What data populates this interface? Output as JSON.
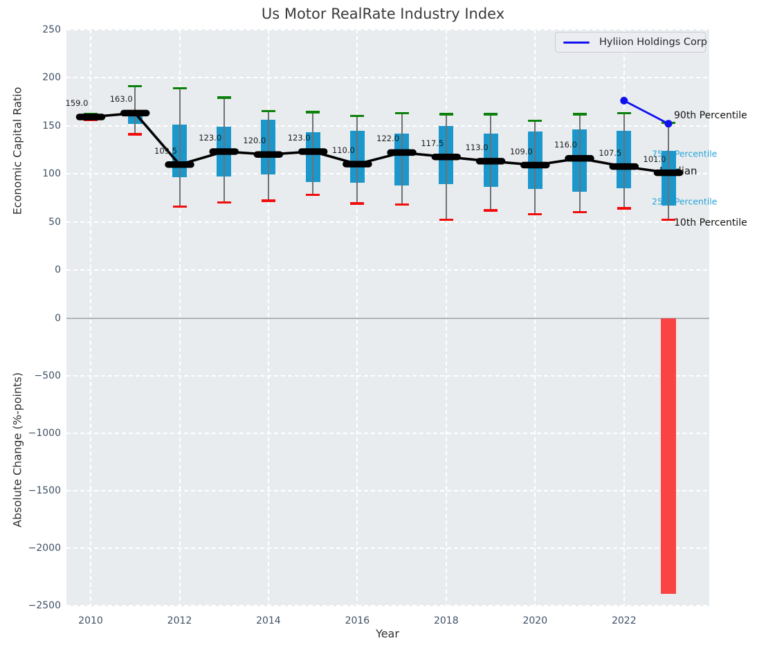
{
  "title": "Us Motor RealRate Industry Index",
  "legend": {
    "label": "Hyliion Holdings Corp",
    "line_color": "#1111ee"
  },
  "axes": {
    "top": {
      "ylabel": "Economic Capital Ratio",
      "yticks": [
        {
          "label": "250",
          "v": 250
        },
        {
          "label": "200",
          "v": 200
        },
        {
          "label": "150",
          "v": 150
        },
        {
          "label": "100",
          "v": 100
        },
        {
          "label": "50",
          "v": 50
        },
        {
          "label": "0",
          "v": 0
        }
      ]
    },
    "bottom": {
      "ylabel": "Absolute Change (%-points)",
      "yticks": [
        {
          "label": "0",
          "v": 0
        },
        {
          "label": "−500",
          "v": -500
        },
        {
          "label": "−1000",
          "v": -1000
        },
        {
          "label": "−1500",
          "v": -1500
        },
        {
          "label": "−2000",
          "v": -2000
        },
        {
          "label": "−2500",
          "v": -2500
        }
      ]
    },
    "x": {
      "label": "Year",
      "ticks": [
        {
          "label": "2010",
          "v": 2010
        },
        {
          "label": "2012",
          "v": 2012
        },
        {
          "label": "2014",
          "v": 2014
        },
        {
          "label": "2016",
          "v": 2016
        },
        {
          "label": "2018",
          "v": 2018
        },
        {
          "label": "2020",
          "v": 2020
        },
        {
          "label": "2022",
          "v": 2022
        }
      ]
    }
  },
  "chart_data": {
    "type": "boxplot+line+bar",
    "title": "Us Motor RealRate Industry Index",
    "xlabel": "Year",
    "top_panel": {
      "ylabel": "Economic Capital Ratio",
      "ylim": [
        -40,
        250
      ],
      "years": [
        2010,
        2011,
        2012,
        2013,
        2014,
        2015,
        2016,
        2017,
        2018,
        2019,
        2020,
        2021,
        2022,
        2023
      ],
      "median": [
        159,
        163,
        109.5,
        123,
        120,
        123,
        110,
        122,
        117.5,
        113,
        109,
        116,
        107.5,
        101
      ],
      "median_labels": [
        "159.0",
        "163.0",
        "109.5",
        "123.0",
        "120.0",
        "123.0",
        "110.0",
        "122.0",
        "117.5",
        "113.0",
        "109.0",
        "116.0",
        "107.5",
        "101.0"
      ],
      "p75": [
        161,
        163,
        151,
        149,
        156,
        143,
        145,
        142,
        150,
        142,
        144,
        146,
        145,
        124
      ],
      "p25": [
        158,
        152,
        96,
        97,
        99,
        91,
        91,
        88,
        89,
        86,
        84,
        81,
        85,
        67
      ],
      "p90": [
        162,
        191,
        189,
        179,
        165,
        164,
        160,
        163,
        162,
        162,
        155,
        162,
        163,
        153
      ],
      "p10": [
        156,
        141,
        66,
        70,
        72,
        78,
        69,
        68,
        52,
        62,
        58,
        60,
        64,
        52
      ],
      "company_line": {
        "name": "Hyliion Holdings Corp",
        "x": [
          2022,
          2023
        ],
        "y": [
          176,
          152
        ]
      }
    },
    "bottom_panel": {
      "ylabel": "Absolute Change (%-points)",
      "ylim": [
        -2500,
        0
      ],
      "bars": [
        {
          "year": 2023,
          "value": -2400
        }
      ]
    },
    "annotations": [
      {
        "text": "90th Percentile",
        "value": 152,
        "role": "black"
      },
      {
        "text": "75th Percentile",
        "value": 124,
        "role": "cyan"
      },
      {
        "text": "Median",
        "value": 101,
        "role": "median"
      },
      {
        "text": "25th Percentile",
        "value": 70,
        "role": "cyan"
      },
      {
        "text": "10th Percentile",
        "value": 52,
        "role": "black"
      }
    ]
  },
  "colors": {
    "plot_bg": "#e9ecef",
    "grid": "#ffffff",
    "box_fill": "#1b97cb",
    "whisker": "#6e7274",
    "cap_high": "#0a810a",
    "cap_low": "#f20d0d",
    "median": "#000000",
    "company_line": "#1111ee",
    "change_bar": "#fa4343",
    "annotation_cyan": "#27a4d8",
    "annotation_black": "#111111",
    "tick_text": "#3e5064"
  }
}
